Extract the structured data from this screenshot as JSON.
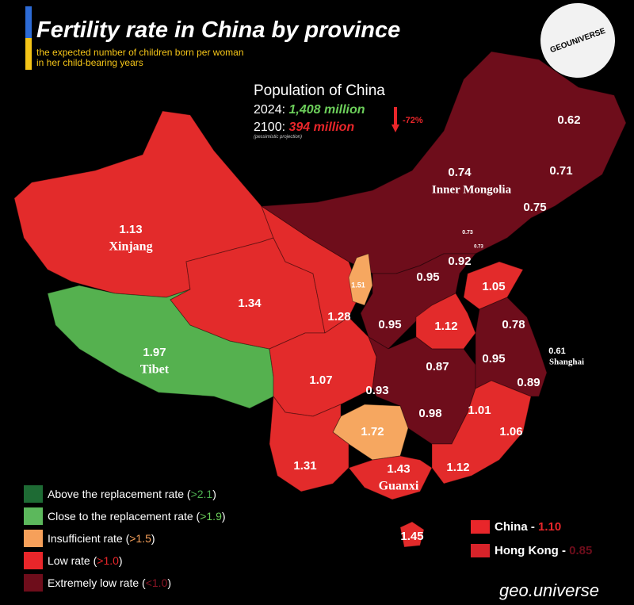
{
  "header": {
    "title": "Fertility rate in China by province",
    "subtitle": "the expected number of children born per woman in her child-bearing years"
  },
  "logo": "GEOUNIVERSE",
  "population": {
    "title": "Population of China",
    "rows": [
      {
        "year": "2024:",
        "value": "1,408 million",
        "color": "#6ccf5a"
      },
      {
        "year": "2100:",
        "value": "394 million",
        "color": "#e8262a"
      }
    ],
    "change": "-72%",
    "note": "(pessimistic projection)"
  },
  "regions": [
    {
      "name": "Xinjang",
      "rate": "1.13",
      "color": "#e32b2b"
    },
    {
      "name": "Tibet",
      "rate": "1.97",
      "color": "#55b14f"
    },
    {
      "rate": "1.34",
      "color": "#e32b2b"
    },
    {
      "rate": "1.28",
      "color": "#e32b2b"
    },
    {
      "name": "Inner Mongolia",
      "rate": "0.74",
      "color": "#6e0d1b"
    },
    {
      "rate": "0.62"
    },
    {
      "rate": "0.71"
    },
    {
      "rate": "0.75"
    },
    {
      "rate": "0.73"
    },
    {
      "rate": "0.73"
    },
    {
      "rate": "1.51",
      "color": "#f6a760"
    },
    {
      "rate": "0.92"
    },
    {
      "rate": "0.95",
      "color": "#6e0d1b"
    },
    {
      "rate": "0.95"
    },
    {
      "rate": "1.05",
      "color": "#e32b2b"
    },
    {
      "rate": "1.12",
      "color": "#e32b2b"
    },
    {
      "rate": "1.07",
      "color": "#e32b2b"
    },
    {
      "rate": "0.87",
      "color": "#6e0d1b"
    },
    {
      "rate": "0.93"
    },
    {
      "rate": "0.98"
    },
    {
      "rate": "0.78",
      "color": "#6e0d1b"
    },
    {
      "rate": "0.95"
    },
    {
      "rate": "0.89"
    },
    {
      "name": "Shanghai",
      "rate": "0.61"
    },
    {
      "rate": "1.72",
      "color": "#f6a760"
    },
    {
      "rate": "1.31",
      "color": "#e32b2b"
    },
    {
      "name": "Guanxi",
      "rate": "1.43",
      "color": "#e32b2b"
    },
    {
      "rate": "1.01",
      "color": "#e32b2b"
    },
    {
      "rate": "1.06"
    },
    {
      "rate": "1.12"
    },
    {
      "rate": "1.45",
      "color": "#e32b2b"
    }
  ],
  "legend": [
    {
      "label": "Above the replacement rate",
      "threshold": ">2.1",
      "color": "#1e6b34",
      "threshold_color": "#4caf50"
    },
    {
      "label": "Close to the replacement rate",
      "threshold": ">1.9",
      "color": "#5cb85c",
      "threshold_color": "#6ccf5a"
    },
    {
      "label": "Insufficient rate",
      "threshold": ">1.5",
      "color": "#f6a05a",
      "threshold_color": "#f6a05a"
    },
    {
      "label": "Low rate",
      "threshold": ">1.0",
      "color": "#e8262a",
      "threshold_color": "#e8262a"
    },
    {
      "label": "Extremely low rate",
      "threshold": "<1.0",
      "color": "#6e0d1b",
      "threshold_color": "#8b1525"
    }
  ],
  "national": [
    {
      "name": "China -",
      "rate": "1.10",
      "color": "#e8262a"
    },
    {
      "name": "Hong Kong -",
      "rate": "0.85",
      "color": "#6e0d1b"
    }
  ],
  "footer": "geo.universe"
}
